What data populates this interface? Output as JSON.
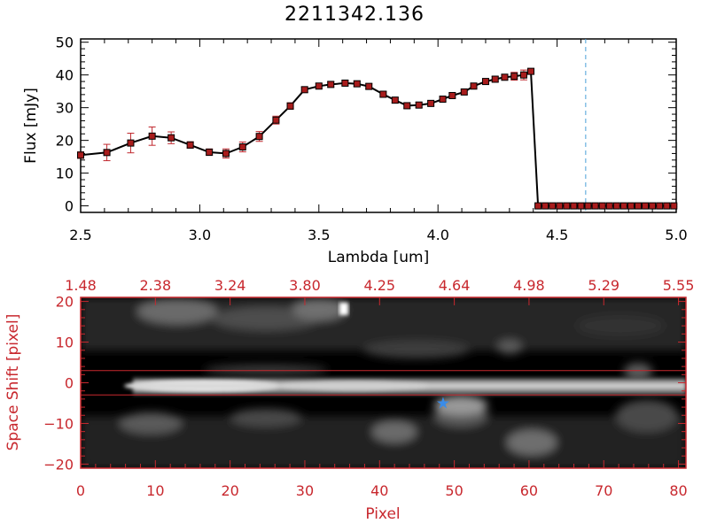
{
  "colors": {
    "axis": "#000000",
    "accent": "#c8282e",
    "marker": "#a81c1c",
    "marker_edge": "#000000",
    "errorbar": "#c0282e",
    "line": "#000000",
    "dashed": "#4aa0d8",
    "star": "#3a8ce8"
  },
  "chart_data": [
    {
      "type": "line",
      "title": "2211342.136",
      "xlabel": "Lambda [um]",
      "ylabel": "Flux [mJy]",
      "xlim": [
        2.5,
        5.0
      ],
      "ylim": [
        -2,
        51
      ],
      "x_ticks": [
        2.5,
        3.0,
        3.5,
        4.0,
        4.5,
        5.0
      ],
      "x_tick_labels": [
        "2.5",
        "3.0",
        "3.5",
        "4.0",
        "4.5",
        "5.0"
      ],
      "y_ticks": [
        0,
        10,
        20,
        30,
        40,
        50
      ],
      "y_tick_labels": [
        "0",
        "10",
        "20",
        "30",
        "40",
        "50"
      ],
      "vertical_dashed_line_x": 4.62,
      "series": [
        {
          "x": [
            2.5,
            2.61,
            2.71,
            2.8,
            2.88,
            2.96,
            3.04,
            3.11,
            3.18,
            3.25,
            3.32,
            3.38,
            3.44,
            3.5,
            3.55,
            3.61,
            3.66,
            3.71,
            3.77,
            3.82,
            3.87,
            3.92,
            3.97,
            4.02,
            4.06,
            4.11,
            4.15,
            4.2,
            4.24,
            4.28,
            4.32,
            4.36,
            4.39,
            4.42,
            4.45,
            4.48,
            4.51,
            4.54,
            4.57,
            4.6,
            4.63,
            4.66,
            4.69,
            4.72,
            4.75,
            4.78,
            4.81,
            4.84,
            4.87,
            4.9,
            4.93,
            4.96,
            4.99
          ],
          "y": [
            15.5,
            16.3,
            19.2,
            21.3,
            20.8,
            18.6,
            16.4,
            16.0,
            18.0,
            21.2,
            26.2,
            30.5,
            35.5,
            36.6,
            37.1,
            37.5,
            37.3,
            36.5,
            34.1,
            32.3,
            30.6,
            30.8,
            31.3,
            32.6,
            33.7,
            34.8,
            36.6,
            38.0,
            38.7,
            39.3,
            39.6,
            40.0,
            41.1,
            0,
            0,
            0,
            0,
            0,
            0,
            0,
            0,
            0,
            0,
            0,
            0,
            0,
            0,
            0,
            0,
            0,
            0,
            0,
            0
          ],
          "yerr": [
            1.0,
            2.5,
            3.0,
            2.8,
            1.8,
            1.0,
            1.0,
            1.4,
            1.5,
            1.5,
            1.2,
            1.0,
            0.8,
            0.8,
            0.8,
            0.8,
            0.8,
            0.8,
            0.8,
            0.8,
            0.8,
            0.8,
            0.8,
            0.8,
            0.8,
            0.8,
            0.8,
            0.8,
            0.8,
            0.8,
            1.2,
            1.5,
            0.8,
            0.3,
            0.3,
            0.3,
            0.3,
            0.3,
            0.3,
            0.3,
            0.3,
            0.3,
            0.3,
            0.3,
            0.3,
            0.3,
            0.3,
            0.3,
            0.3,
            0.3,
            0.3,
            0.3,
            0.3
          ]
        }
      ]
    },
    {
      "type": "heatmap",
      "xlabel": "Pixel",
      "ylabel": "Space Shift [pixel]",
      "xlim": [
        0,
        81
      ],
      "ylim": [
        -21,
        21
      ],
      "x_ticks": [
        0,
        10,
        20,
        30,
        40,
        50,
        60,
        70,
        80
      ],
      "x_tick_labels": [
        "0",
        "10",
        "20",
        "30",
        "40",
        "50",
        "60",
        "70",
        "80"
      ],
      "y_ticks": [
        -20,
        -10,
        0,
        10,
        20
      ],
      "y_tick_labels": [
        "−20",
        "−10",
        "0",
        "10",
        "20"
      ],
      "top_axis_tick_labels": [
        "1.48",
        "2.38",
        "3.24",
        "3.80",
        "4.25",
        "4.64",
        "4.98",
        "5.29",
        "5.55"
      ],
      "extraction_lines_y": [
        3,
        -3
      ],
      "star_marker": {
        "x": 48.5,
        "y": -5
      },
      "description_of_values": "grayscale 2D spectrum; bright horizontal trace near y=0 from x~7 to x~81"
    }
  ]
}
